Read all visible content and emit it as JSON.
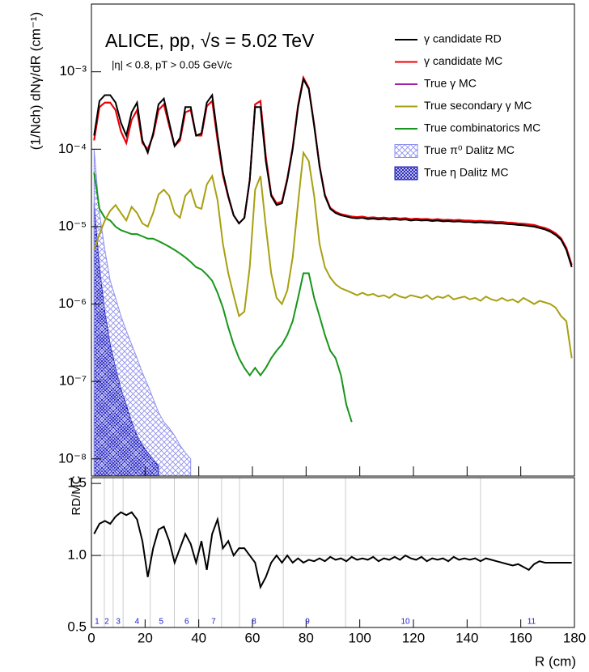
{
  "chart_data": [
    {
      "type": "step",
      "title": "ALICE, pp, √s = 5.02 TeV",
      "subtitle": "|η| < 0.8, pT > 0.05 GeV/c",
      "ylabel": "(1/Nch) dNγ/dR (cm⁻¹)",
      "log_y": true,
      "xlim": [
        0,
        180
      ],
      "ylim": [
        6e-09,
        0.0075
      ],
      "yticks": [
        {
          "value": 1e-08,
          "label": "10⁻⁸"
        },
        {
          "value": 1e-07,
          "label": "10⁻⁷"
        },
        {
          "value": 1e-06,
          "label": "10⁻⁶"
        },
        {
          "value": 1e-05,
          "label": "10⁻⁵"
        },
        {
          "value": 0.0001,
          "label": "10⁻⁴"
        },
        {
          "value": 0.001,
          "label": "10⁻³"
        }
      ],
      "x": [
        1,
        3,
        5,
        7,
        9,
        11,
        13,
        15,
        17,
        19,
        21,
        23,
        25,
        27,
        29,
        31,
        33,
        35,
        37,
        39,
        41,
        43,
        45,
        47,
        49,
        51,
        53,
        55,
        57,
        59,
        61,
        63,
        65,
        67,
        69,
        71,
        73,
        75,
        77,
        79,
        81,
        83,
        85,
        87,
        89,
        91,
        93,
        95,
        97,
        99,
        101,
        103,
        105,
        107,
        109,
        111,
        113,
        115,
        117,
        119,
        121,
        123,
        125,
        127,
        129,
        131,
        133,
        135,
        137,
        139,
        141,
        143,
        145,
        147,
        149,
        151,
        153,
        155,
        157,
        159,
        161,
        163,
        165,
        167,
        169,
        171,
        173,
        175,
        177,
        179
      ],
      "series": [
        {
          "name": "γ candidate RD",
          "color": "#000000",
          "style": "line",
          "values": [
            0.00015,
            0.00042,
            0.0005,
            0.0005,
            0.0004,
            0.00022,
            0.00015,
            0.0003,
            0.0004,
            0.00013,
            9e-05,
            0.00016,
            0.00038,
            0.00045,
            0.00022,
            0.00011,
            0.00014,
            0.00035,
            0.00035,
            0.00015,
            0.00016,
            0.0004,
            0.0005,
            0.00015,
            5e-05,
            2.5e-05,
            1.4e-05,
            1.1e-05,
            1.3e-05,
            4e-05,
            0.00035,
            0.00035,
            7e-05,
            2.5e-05,
            1.9e-05,
            2e-05,
            4e-05,
            0.0001,
            0.00035,
            0.0008,
            0.0006,
            0.0002,
            6e-05,
            2.5e-05,
            1.7e-05,
            1.5e-05,
            1.4e-05,
            1.35e-05,
            1.3e-05,
            1.28e-05,
            1.3e-05,
            1.25e-05,
            1.27e-05,
            1.24e-05,
            1.26e-05,
            1.23e-05,
            1.25e-05,
            1.22e-05,
            1.24e-05,
            1.2e-05,
            1.22e-05,
            1.2e-05,
            1.21e-05,
            1.18e-05,
            1.2e-05,
            1.17e-05,
            1.18e-05,
            1.16e-05,
            1.17e-05,
            1.15e-05,
            1.15e-05,
            1.13e-05,
            1.14e-05,
            1.12e-05,
            1.12e-05,
            1.1e-05,
            1.1e-05,
            1.08e-05,
            1.07e-05,
            1.05e-05,
            1.04e-05,
            1.02e-05,
            1e-05,
            9.6e-06,
            9.2e-06,
            8.6e-06,
            7.8e-06,
            6.8e-06,
            5e-06,
            3e-06
          ]
        },
        {
          "name": "γ candidate MC",
          "color": "#ee0000",
          "style": "line",
          "values": [
            0.00013,
            0.00035,
            0.0004,
            0.0004,
            0.00032,
            0.00017,
            0.00012,
            0.00024,
            0.00032,
            0.00012,
            0.0001,
            0.00015,
            0.00032,
            0.00038,
            0.0002,
            0.00011,
            0.00013,
            0.0003,
            0.00032,
            0.00015,
            0.00015,
            0.00036,
            0.00042,
            0.00013,
            4.6e-05,
            2.4e-05,
            1.4e-05,
            1.1e-05,
            1.3e-05,
            4e-05,
            0.00038,
            0.00042,
            8e-05,
            2.6e-05,
            2e-05,
            2.1e-05,
            4.2e-05,
            0.000105,
            0.00037,
            0.00084,
            0.00062,
            0.00021,
            6.2e-05,
            2.6e-05,
            1.75e-05,
            1.55e-05,
            1.45e-05,
            1.4e-05,
            1.35e-05,
            1.33e-05,
            1.35e-05,
            1.3e-05,
            1.32e-05,
            1.29e-05,
            1.31e-05,
            1.28e-05,
            1.3e-05,
            1.27e-05,
            1.29e-05,
            1.25e-05,
            1.27e-05,
            1.25e-05,
            1.26e-05,
            1.23e-05,
            1.25e-05,
            1.22e-05,
            1.23e-05,
            1.21e-05,
            1.22e-05,
            1.2e-05,
            1.2e-05,
            1.18e-05,
            1.19e-05,
            1.17e-05,
            1.17e-05,
            1.15e-05,
            1.15e-05,
            1.13e-05,
            1.12e-05,
            1.1e-05,
            1.09e-05,
            1.07e-05,
            1.05e-05,
            1e-05,
            9.6e-06,
            9e-06,
            8.2e-06,
            7.1e-06,
            5.3e-06,
            3.2e-06
          ]
        },
        {
          "name": "True γ MC",
          "color": "#a020a8",
          "style": "line",
          "values": [
            0.00013,
            0.00035,
            0.0004,
            0.0004,
            0.00032,
            0.00017,
            0.00012,
            0.00024,
            0.00032,
            0.00012,
            0.0001,
            0.00015,
            0.00032,
            0.00038,
            0.0002,
            0.00011,
            0.00013,
            0.0003,
            0.00032,
            0.00015,
            0.00015,
            0.00036,
            0.00042,
            0.00013,
            4.6e-05,
            2.4e-05,
            1.4e-05,
            1.1e-05,
            1.3e-05,
            4e-05,
            0.00038,
            0.00042,
            8e-05,
            2.6e-05,
            2e-05,
            2.1e-05,
            4.2e-05,
            0.000105,
            0.00037,
            0.00084,
            0.00062,
            0.00021,
            6.2e-05,
            2.6e-05,
            1.75e-05,
            1.55e-05,
            1.45e-05,
            1.4e-05,
            1.35e-05,
            1.33e-05,
            1.35e-05,
            1.3e-05,
            1.32e-05,
            1.29e-05,
            1.31e-05,
            1.28e-05,
            1.3e-05,
            1.27e-05,
            1.29e-05,
            1.25e-05,
            1.27e-05,
            1.25e-05,
            1.26e-05,
            1.23e-05,
            1.25e-05,
            1.22e-05,
            1.23e-05,
            1.21e-05,
            1.22e-05,
            1.2e-05,
            1.2e-05,
            1.18e-05,
            1.19e-05,
            1.17e-05,
            1.17e-05,
            1.15e-05,
            1.15e-05,
            1.13e-05,
            1.12e-05,
            1.1e-05,
            1.09e-05,
            1.07e-05,
            1.05e-05,
            1e-05,
            9.6e-06,
            9e-06,
            8.2e-06,
            7.1e-06,
            5.3e-06,
            3.2e-06
          ]
        },
        {
          "name": "True secondary γ MC",
          "color": "#a8a010",
          "style": "line",
          "values": [
            5e-06,
            8e-06,
            1.2e-05,
            1.6e-05,
            1.9e-05,
            1.5e-05,
            1.2e-05,
            1.8e-05,
            1.5e-05,
            1.1e-05,
            1e-05,
            1.5e-05,
            2.6e-05,
            3e-05,
            2.5e-05,
            1.5e-05,
            1.3e-05,
            2.5e-05,
            3e-05,
            1.8e-05,
            1.7e-05,
            3.5e-05,
            4.5e-05,
            2.2e-05,
            6e-06,
            2.5e-06,
            1.3e-06,
            7e-07,
            8e-07,
            3e-06,
            3e-05,
            4.5e-05,
            1e-05,
            2.5e-06,
            1.2e-06,
            1e-06,
            1.5e-06,
            4e-06,
            2e-05,
            9e-05,
            7e-05,
            2.5e-05,
            6e-06,
            3e-06,
            2.2e-06,
            1.8e-06,
            1.6e-06,
            1.5e-06,
            1.4e-06,
            1.3e-06,
            1.4e-06,
            1.3e-06,
            1.35e-06,
            1.25e-06,
            1.3e-06,
            1.2e-06,
            1.35e-06,
            1.25e-06,
            1.2e-06,
            1.3e-06,
            1.25e-06,
            1.2e-06,
            1.3e-06,
            1.15e-06,
            1.25e-06,
            1.2e-06,
            1.3e-06,
            1.15e-06,
            1.2e-06,
            1.25e-06,
            1.15e-06,
            1.2e-06,
            1.1e-06,
            1.25e-06,
            1.15e-06,
            1.1e-06,
            1.2e-06,
            1.1e-06,
            1.15e-06,
            1.05e-06,
            1.2e-06,
            1.1e-06,
            1e-06,
            1.1e-06,
            1.05e-06,
            1e-06,
            9e-07,
            7e-07,
            6e-07,
            2e-07
          ]
        },
        {
          "name": "True combinatorics MC",
          "color": "#16961a",
          "style": "line",
          "values": [
            5e-05,
            1.7e-05,
            1.3e-05,
            1.2e-05,
            1e-05,
            9e-06,
            8.5e-06,
            8e-06,
            8e-06,
            7.5e-06,
            7e-06,
            7e-06,
            6.5e-06,
            6e-06,
            5.5e-06,
            5e-06,
            4.5e-06,
            4e-06,
            3.5e-06,
            3e-06,
            2.8e-06,
            2.4e-06,
            2e-06,
            1.4e-06,
            9e-07,
            5e-07,
            3e-07,
            2e-07,
            1.5e-07,
            1.2e-07,
            1.5e-07,
            1.2e-07,
            1.5e-07,
            2e-07,
            2.5e-07,
            3e-07,
            4e-07,
            6e-07,
            1.2e-06,
            2.5e-06,
            2.5e-06,
            1.2e-06,
            7e-07,
            4e-07,
            2.5e-07,
            2e-07,
            1.2e-07,
            5e-08,
            3e-08,
            null,
            null,
            null,
            null,
            null,
            null,
            null,
            null,
            null,
            null,
            null,
            null,
            null,
            null,
            null,
            null,
            null,
            null,
            null,
            null,
            null,
            null,
            null,
            null,
            null,
            null,
            null,
            null,
            null,
            null,
            null,
            null,
            null,
            null,
            null,
            null,
            null,
            null,
            null,
            null,
            null
          ]
        },
        {
          "name": "True π⁰ Dalitz MC",
          "color": "#8f8fee",
          "style": "hatch",
          "values": [
            0.0001,
            1.5e-05,
            5e-06,
            2e-06,
            1.2e-06,
            7e-07,
            4.5e-07,
            3e-07,
            2e-07,
            1.3e-07,
            9e-08,
            6e-08,
            4e-08,
            3e-08,
            2.5e-08,
            2e-08,
            1.5e-08,
            1.2e-08,
            1e-08,
            null,
            null,
            null,
            null,
            null,
            null,
            null,
            null,
            null,
            null,
            null,
            null,
            null,
            null,
            null,
            null,
            null,
            null,
            null,
            null,
            null,
            null,
            null,
            null,
            null,
            null,
            null,
            null,
            null,
            null,
            null,
            null,
            null,
            null,
            null,
            null,
            null,
            null,
            null,
            null,
            null,
            null,
            null,
            null,
            null,
            null,
            null,
            null,
            null,
            null,
            null,
            null,
            null,
            null,
            null,
            null,
            null,
            null,
            null,
            null,
            null,
            null,
            null,
            null,
            null,
            null,
            null,
            null,
            null,
            null,
            null
          ]
        },
        {
          "name": "True η Dalitz MC",
          "color": "#1f1fb8",
          "style": "hatch",
          "values": [
            2e-05,
            3e-06,
            8e-07,
            3e-07,
            1.5e-07,
            8e-08,
            5e-08,
            3e-08,
            2e-08,
            1.5e-08,
            1.2e-08,
            1e-08,
            8e-09,
            null,
            null,
            null,
            null,
            null,
            null,
            null,
            null,
            null,
            null,
            null,
            null,
            null,
            null,
            null,
            null,
            null,
            null,
            null,
            null,
            null,
            null,
            null,
            null,
            null,
            null,
            null,
            null,
            null,
            null,
            null,
            null,
            null,
            null,
            null,
            null,
            null,
            null,
            null,
            null,
            null,
            null,
            null,
            null,
            null,
            null,
            null,
            null,
            null,
            null,
            null,
            null,
            null,
            null,
            null,
            null,
            null,
            null,
            null,
            null,
            null,
            null,
            null,
            null,
            null,
            null,
            null,
            null,
            null,
            null,
            null,
            null,
            null,
            null,
            null,
            null,
            null
          ]
        }
      ]
    },
    {
      "type": "step",
      "ylabel": "RD/MC",
      "xlabel": "R (cm)",
      "xlim": [
        0,
        180
      ],
      "ylim": [
        0.5,
        1.54
      ],
      "yticks": [
        0.5,
        {
          "value": 1,
          "label": "1.0"
        },
        1.5
      ],
      "xticks": [
        0,
        20,
        40,
        60,
        80,
        100,
        120,
        140,
        160,
        180
      ],
      "hline": 1,
      "x": [
        1,
        3,
        5,
        7,
        9,
        11,
        13,
        15,
        17,
        19,
        21,
        23,
        25,
        27,
        29,
        31,
        33,
        35,
        37,
        39,
        41,
        43,
        45,
        47,
        49,
        51,
        53,
        55,
        57,
        59,
        61,
        63,
        65,
        67,
        69,
        71,
        73,
        75,
        77,
        79,
        81,
        83,
        85,
        87,
        89,
        91,
        93,
        95,
        97,
        99,
        101,
        103,
        105,
        107,
        109,
        111,
        113,
        115,
        117,
        119,
        121,
        123,
        125,
        127,
        129,
        131,
        133,
        135,
        137,
        139,
        141,
        143,
        145,
        147,
        149,
        151,
        153,
        155,
        157,
        159,
        161,
        163,
        165,
        167,
        169,
        171,
        173,
        175,
        177,
        179
      ],
      "series": [
        {
          "color": "#000000",
          "style": "line",
          "values": [
            1.15,
            1.22,
            1.24,
            1.22,
            1.27,
            1.3,
            1.28,
            1.3,
            1.25,
            1.1,
            0.85,
            1.05,
            1.18,
            1.2,
            1.1,
            0.95,
            1.05,
            1.15,
            1.08,
            0.95,
            1.1,
            0.9,
            1.15,
            1.25,
            1.05,
            1.1,
            1.0,
            1.05,
            1.05,
            1.0,
            0.95,
            0.78,
            0.85,
            0.95,
            1.0,
            0.95,
            1.0,
            0.95,
            0.98,
            0.95,
            0.97,
            0.96,
            0.98,
            0.96,
            0.99,
            0.97,
            0.98,
            0.96,
            0.99,
            0.97,
            0.98,
            0.97,
            0.99,
            0.96,
            0.98,
            0.97,
            0.99,
            0.97,
            1.0,
            0.98,
            0.97,
            0.99,
            0.96,
            0.98,
            0.97,
            0.98,
            0.96,
            0.99,
            0.97,
            0.98,
            0.97,
            0.98,
            0.96,
            0.98,
            0.97,
            0.96,
            0.95,
            0.94,
            0.93,
            0.94,
            0.92,
            0.9,
            0.94,
            0.96,
            0.95,
            0.95,
            0.95,
            0.95,
            0.95,
            0.95
          ]
        }
      ],
      "region_boundaries": [
        4.8,
        8.1,
        11.8,
        21.9,
        30.9,
        39.9,
        48.5,
        55.2,
        71.5,
        94.7,
        145
      ],
      "annotations": [
        {
          "text": "1",
          "x": 2.1
        },
        {
          "text": "2",
          "x": 5.7
        },
        {
          "text": "3",
          "x": 10
        },
        {
          "text": "4",
          "x": 17
        },
        {
          "text": "5",
          "x": 26
        },
        {
          "text": "6",
          "x": 35.5
        },
        {
          "text": "7",
          "x": 45.5
        },
        {
          "text": "8",
          "x": 60.6
        },
        {
          "text": "9",
          "x": 80.5
        },
        {
          "text": "10",
          "x": 117
        },
        {
          "text": "11",
          "x": 164
        }
      ]
    }
  ]
}
